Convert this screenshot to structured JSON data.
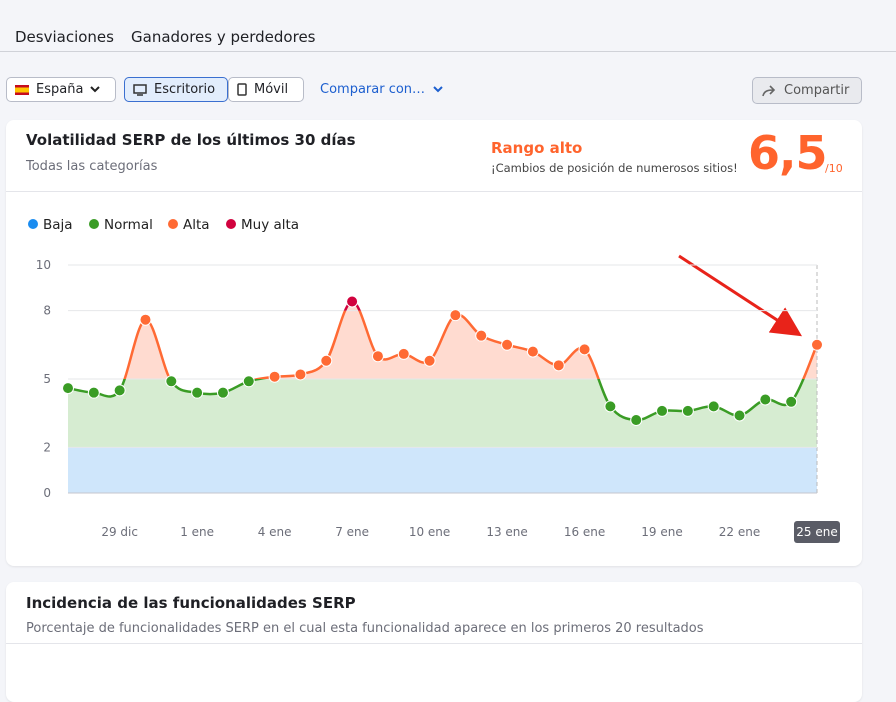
{
  "tabs": [
    "Desviaciones",
    "Ganadores y perdedores"
  ],
  "toolbar": {
    "country": "España",
    "desktop": "Escritorio",
    "mobile": "Móvil",
    "compare": "Comparar con…",
    "share": "Compartir"
  },
  "card1": {
    "title": "Volatilidad SERP de los últimos 30 días",
    "subtitle": "Todas las categorías",
    "score_label": "Rango alto",
    "score_note": "¡Cambios de posición de numerosos sitios!",
    "score": "6,5",
    "score_scale": "/10"
  },
  "chart_data": {
    "type": "line",
    "categories": [
      null,
      null,
      "29 dic",
      null,
      null,
      "1 ene",
      null,
      null,
      "4 ene",
      null,
      null,
      "7 ene",
      null,
      null,
      "10 ene",
      null,
      null,
      "13 ene",
      null,
      null,
      "16 ene",
      null,
      null,
      "19 ene",
      null,
      null,
      "22 ene",
      null,
      null,
      "25 ene"
    ],
    "values": [
      4.6,
      4.4,
      4.5,
      7.6,
      4.9,
      4.4,
      4.4,
      4.9,
      5.1,
      5.2,
      5.8,
      8.4,
      6.0,
      6.1,
      5.8,
      7.8,
      6.9,
      6.5,
      6.2,
      5.6,
      6.3,
      3.8,
      3.2,
      3.6,
      3.6,
      3.8,
      3.4,
      4.1,
      4.0,
      6.5
    ],
    "levels": [
      {
        "name": "Baja",
        "color": "#1a8cf0",
        "band_color": "#cfe6fb",
        "range": [
          0,
          2
        ]
      },
      {
        "name": "Normal",
        "color": "#3a9c25",
        "band_color": "#d6ecd1",
        "range": [
          2,
          5
        ]
      },
      {
        "name": "Alta",
        "color": "#ff6a34",
        "band_color": "#ffdbd0",
        "range": [
          5,
          8
        ]
      },
      {
        "name": "Muy alta",
        "color": "#d1023e",
        "band_color": "#ffdbd0",
        "range": [
          8,
          10
        ]
      }
    ],
    "ylim": [
      0,
      10
    ],
    "yticks": [
      0,
      2,
      5,
      8,
      10
    ],
    "grid": true
  },
  "card2": {
    "title": "Incidencia de las funcionalidades SERP",
    "subtitle": "Porcentaje de funcionalidades SERP en el cual esta funcionalidad aparece en los primeros 20 resultados"
  }
}
